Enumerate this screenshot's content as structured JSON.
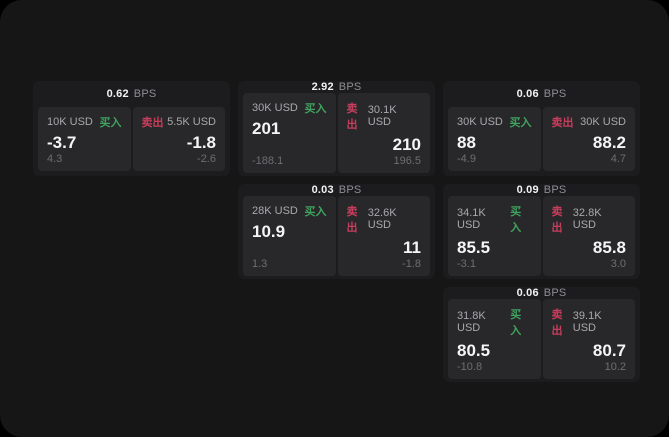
{
  "labels": {
    "bps_unit": "BPS",
    "buy": "买入",
    "sell": "卖出"
  },
  "colors": {
    "page_bg": "#000000",
    "window_bg": "#161617",
    "card_bg": "#1c1c1e",
    "panel_bg": "#28282a",
    "buy_green": "#3fa35f",
    "sell_red": "#c73e5c",
    "text_white": "#f5f5f7",
    "text_gray": "#a9a9ad",
    "text_dim": "#6e6e72"
  },
  "cards": [
    {
      "row": 1,
      "col": 1,
      "bps": "0.62",
      "buy": {
        "amount": "10K USD",
        "value": "-3.7",
        "sub": "4.3"
      },
      "sell": {
        "amount": "5.5K USD",
        "value": "-1.8",
        "sub": "-2.6"
      }
    },
    {
      "row": 1,
      "col": 2,
      "bps": "2.92",
      "buy": {
        "amount": "30K USD",
        "value": "201",
        "sub": "-188.1"
      },
      "sell": {
        "amount": "30.1K USD",
        "value": "210",
        "sub": "196.5"
      }
    },
    {
      "row": 1,
      "col": 3,
      "bps": "0.06",
      "buy": {
        "amount": "30K USD",
        "value": "88",
        "sub": "-4.9"
      },
      "sell": {
        "amount": "30K USD",
        "value": "88.2",
        "sub": "4.7"
      }
    },
    {
      "row": 2,
      "col": 2,
      "bps": "0.03",
      "buy": {
        "amount": "28K USD",
        "value": "10.9",
        "sub": "1.3"
      },
      "sell": {
        "amount": "32.6K USD",
        "value": "11",
        "sub": "-1.8"
      }
    },
    {
      "row": 2,
      "col": 3,
      "bps": "0.09",
      "buy": {
        "amount": "34.1K USD",
        "value": "85.5",
        "sub": "-3.1"
      },
      "sell": {
        "amount": "32.8K USD",
        "value": "85.8",
        "sub": "3.0"
      }
    },
    {
      "row": 3,
      "col": 3,
      "bps": "0.06",
      "buy": {
        "amount": "31.8K USD",
        "value": "80.5",
        "sub": "-10.8"
      },
      "sell": {
        "amount": "39.1K USD",
        "value": "80.7",
        "sub": "10.2"
      }
    }
  ]
}
